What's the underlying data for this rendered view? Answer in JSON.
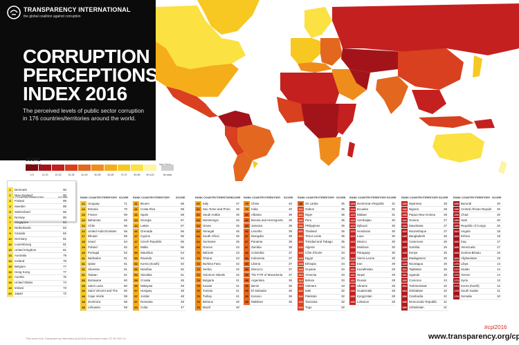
{
  "header": {
    "org_name": "TRANSPARENCY INTERNATIONAL",
    "org_tagline": "the global coalition against corruption",
    "title_lines": [
      "CORRUPTION",
      "PERCEPTIONS",
      "INDEX 2016"
    ],
    "subtitle": "The perceived levels of public sector corruption in 176 countries/territories around the world."
  },
  "legend": {
    "title": "SCORE",
    "low_label": "Highly Corrupt",
    "high_label": "Very Clean",
    "bins": [
      {
        "label": "0-9",
        "color": "#7a0c10"
      },
      {
        "label": "10-19",
        "color": "#a3141a"
      },
      {
        "label": "20-29",
        "color": "#c4201f"
      },
      {
        "label": "30-39",
        "color": "#d8401f"
      },
      {
        "label": "40-49",
        "color": "#e4671f"
      },
      {
        "label": "50-59",
        "color": "#ef8d1c"
      },
      {
        "label": "60-69",
        "color": "#f5ad19"
      },
      {
        "label": "70-79",
        "color": "#f8c822"
      },
      {
        "label": "80-89",
        "color": "#fbe142"
      },
      {
        "label": "90-100",
        "color": "#fdf4a6"
      },
      {
        "label": "No data",
        "color": "#cfcfcf"
      }
    ]
  },
  "table_headers": {
    "rank": "RANK",
    "country": "COUNTRY/TERRITORY",
    "score": "SCORE"
  },
  "columns": [
    {
      "rows": [
        {
          "rank": "1",
          "country": "Denmark",
          "score": "90"
        },
        {
          "rank": "1",
          "country": "New Zealand",
          "score": "90"
        },
        {
          "rank": "3",
          "country": "Finland",
          "score": "89"
        },
        {
          "rank": "4",
          "country": "Sweden",
          "score": "88"
        },
        {
          "rank": "5",
          "country": "Switzerland",
          "score": "86"
        },
        {
          "rank": "6",
          "country": "Norway",
          "score": "85"
        },
        {
          "rank": "7",
          "country": "Singapore",
          "score": "84"
        },
        {
          "rank": "8",
          "country": "Netherlands",
          "score": "83"
        },
        {
          "rank": "9",
          "country": "Canada",
          "score": "82"
        },
        {
          "rank": "10",
          "country": "Germany",
          "score": "81"
        },
        {
          "rank": "10",
          "country": "Luxembourg",
          "score": "81"
        },
        {
          "rank": "10",
          "country": "United Kingdom",
          "score": "81"
        },
        {
          "rank": "13",
          "country": "Australia",
          "score": "79"
        },
        {
          "rank": "14",
          "country": "Iceland",
          "score": "78"
        },
        {
          "rank": "15",
          "country": "Belgium",
          "score": "77"
        },
        {
          "rank": "15",
          "country": "Hong Kong",
          "score": "77"
        },
        {
          "rank": "17",
          "country": "Austria",
          "score": "75"
        },
        {
          "rank": "18",
          "country": "United States",
          "score": "74"
        },
        {
          "rank": "19",
          "country": "Ireland",
          "score": "73"
        },
        {
          "rank": "20",
          "country": "Japan",
          "score": "72"
        }
      ]
    },
    {
      "rows": [
        {
          "rank": "21",
          "country": "Uruguay",
          "score": "71"
        },
        {
          "rank": "22",
          "country": "Estonia",
          "score": "70"
        },
        {
          "rank": "23",
          "country": "France",
          "score": "69"
        },
        {
          "rank": "24",
          "country": "Bahamas",
          "score": "66"
        },
        {
          "rank": "24",
          "country": "Chile",
          "score": "66"
        },
        {
          "rank": "24",
          "country": "United Arab Emirates",
          "score": "66"
        },
        {
          "rank": "27",
          "country": "Bhutan",
          "score": "65"
        },
        {
          "rank": "28",
          "country": "Israel",
          "score": "64"
        },
        {
          "rank": "29",
          "country": "Poland",
          "score": "62"
        },
        {
          "rank": "29",
          "country": "Portugal",
          "score": "62"
        },
        {
          "rank": "31",
          "country": "Barbados",
          "score": "61"
        },
        {
          "rank": "31",
          "country": "Qatar",
          "score": "61"
        },
        {
          "rank": "31",
          "country": "Slovenia",
          "score": "61"
        },
        {
          "rank": "31",
          "country": "Taiwan",
          "score": "61"
        },
        {
          "rank": "35",
          "country": "Botswana",
          "score": "60"
        },
        {
          "rank": "35",
          "country": "Saint Lucia",
          "score": "60"
        },
        {
          "rank": "35",
          "country": "Saint Vincent and The Grenadines",
          "score": "60"
        },
        {
          "rank": "38",
          "country": "Cape Verde",
          "score": "59"
        },
        {
          "rank": "38",
          "country": "Dominica",
          "score": "59"
        },
        {
          "rank": "38",
          "country": "Lithuania",
          "score": "59"
        }
      ]
    },
    {
      "rows": [
        {
          "rank": "41",
          "country": "Brunei",
          "score": "58"
        },
        {
          "rank": "41",
          "country": "Costa Rica",
          "score": "58"
        },
        {
          "rank": "41",
          "country": "Spain",
          "score": "58"
        },
        {
          "rank": "44",
          "country": "Georgia",
          "score": "57"
        },
        {
          "rank": "44",
          "country": "Latvia",
          "score": "57"
        },
        {
          "rank": "46",
          "country": "Grenada",
          "score": "56"
        },
        {
          "rank": "47",
          "country": "Cyprus",
          "score": "55"
        },
        {
          "rank": "47",
          "country": "Czech Republic",
          "score": "55"
        },
        {
          "rank": "47",
          "country": "Malta",
          "score": "55"
        },
        {
          "rank": "50",
          "country": "Mauritius",
          "score": "54"
        },
        {
          "rank": "50",
          "country": "Rwanda",
          "score": "54"
        },
        {
          "rank": "52",
          "country": "Korea (South)",
          "score": "53"
        },
        {
          "rank": "53",
          "country": "Namibia",
          "score": "52"
        },
        {
          "rank": "54",
          "country": "Slovakia",
          "score": "51"
        },
        {
          "rank": "55",
          "country": "Croatia",
          "score": "49"
        },
        {
          "rank": "55",
          "country": "Malaysia",
          "score": "49"
        },
        {
          "rank": "57",
          "country": "Hungary",
          "score": "48"
        },
        {
          "rank": "57",
          "country": "Jordan",
          "score": "48"
        },
        {
          "rank": "57",
          "country": "Romania",
          "score": "48"
        },
        {
          "rank": "60",
          "country": "Cuba",
          "score": "47"
        }
      ]
    },
    {
      "rows": [
        {
          "rank": "60",
          "country": "Italy",
          "score": "47"
        },
        {
          "rank": "62",
          "country": "Sao Tome and Principe",
          "score": "46"
        },
        {
          "rank": "62",
          "country": "Saudi Arabia",
          "score": "46"
        },
        {
          "rank": "64",
          "country": "Montenegro",
          "score": "45"
        },
        {
          "rank": "64",
          "country": "Oman",
          "score": "45"
        },
        {
          "rank": "64",
          "country": "Senegal",
          "score": "45"
        },
        {
          "rank": "64",
          "country": "South Africa",
          "score": "45"
        },
        {
          "rank": "64",
          "country": "Suriname",
          "score": "45"
        },
        {
          "rank": "69",
          "country": "Greece",
          "score": "44"
        },
        {
          "rank": "70",
          "country": "Bahrain",
          "score": "43"
        },
        {
          "rank": "70",
          "country": "Ghana",
          "score": "43"
        },
        {
          "rank": "72",
          "country": "Burkina Faso",
          "score": "42"
        },
        {
          "rank": "72",
          "country": "Serbia",
          "score": "42"
        },
        {
          "rank": "72",
          "country": "Solomon Islands",
          "score": "42"
        },
        {
          "rank": "75",
          "country": "Bulgaria",
          "score": "41"
        },
        {
          "rank": "75",
          "country": "Kuwait",
          "score": "41"
        },
        {
          "rank": "75",
          "country": "Tunisia",
          "score": "41"
        },
        {
          "rank": "75",
          "country": "Turkey",
          "score": "41"
        },
        {
          "rank": "79",
          "country": "Belarus",
          "score": "40"
        },
        {
          "rank": "79",
          "country": "Brazil",
          "score": "40"
        }
      ]
    },
    {
      "rows": [
        {
          "rank": "79",
          "country": "China",
          "score": "40"
        },
        {
          "rank": "79",
          "country": "India",
          "score": "40"
        },
        {
          "rank": "83",
          "country": "Albania",
          "score": "39"
        },
        {
          "rank": "83",
          "country": "Bosnia and Herzegovina",
          "score": "39"
        },
        {
          "rank": "83",
          "country": "Jamaica",
          "score": "39"
        },
        {
          "rank": "83",
          "country": "Lesotho",
          "score": "39"
        },
        {
          "rank": "87",
          "country": "Mongolia",
          "score": "38"
        },
        {
          "rank": "87",
          "country": "Panama",
          "score": "38"
        },
        {
          "rank": "87",
          "country": "Zambia",
          "score": "38"
        },
        {
          "rank": "90",
          "country": "Colombia",
          "score": "37"
        },
        {
          "rank": "90",
          "country": "Indonesia",
          "score": "37"
        },
        {
          "rank": "90",
          "country": "Liberia",
          "score": "37"
        },
        {
          "rank": "90",
          "country": "Morocco",
          "score": "37"
        },
        {
          "rank": "90",
          "country": "The FYR of Macedonia",
          "score": "37"
        },
        {
          "rank": "95",
          "country": "Argentina",
          "score": "36"
        },
        {
          "rank": "95",
          "country": "Benin",
          "score": "36"
        },
        {
          "rank": "95",
          "country": "El Salvador",
          "score": "36"
        },
        {
          "rank": "95",
          "country": "Kosovo",
          "score": "36"
        },
        {
          "rank": "95",
          "country": "Maldives",
          "score": "36"
        }
      ]
    },
    {
      "rows": [
        {
          "rank": "95",
          "country": "Sri Lanka",
          "score": "36"
        },
        {
          "rank": "101",
          "country": "Gabon",
          "score": "35"
        },
        {
          "rank": "101",
          "country": "Niger",
          "score": "35"
        },
        {
          "rank": "101",
          "country": "Peru",
          "score": "35"
        },
        {
          "rank": "101",
          "country": "Philippines",
          "score": "35"
        },
        {
          "rank": "101",
          "country": "Thailand",
          "score": "35"
        },
        {
          "rank": "101",
          "country": "Timor-Leste",
          "score": "35"
        },
        {
          "rank": "101",
          "country": "Trinidad and Tobago",
          "score": "35"
        },
        {
          "rank": "108",
          "country": "Algeria",
          "score": "34"
        },
        {
          "rank": "108",
          "country": "Côte d'Ivoire",
          "score": "34"
        },
        {
          "rank": "108",
          "country": "Egypt",
          "score": "34"
        },
        {
          "rank": "108",
          "country": "Ethiopia",
          "score": "34"
        },
        {
          "rank": "108",
          "country": "Guyana",
          "score": "34"
        },
        {
          "rank": "113",
          "country": "Armenia",
          "score": "33"
        },
        {
          "rank": "113",
          "country": "Bolivia",
          "score": "33"
        },
        {
          "rank": "113",
          "country": "Vietnam",
          "score": "33"
        },
        {
          "rank": "116",
          "country": "Mali",
          "score": "32"
        },
        {
          "rank": "116",
          "country": "Pakistan",
          "score": "32"
        },
        {
          "rank": "116",
          "country": "Tanzania",
          "score": "32"
        },
        {
          "rank": "116",
          "country": "Togo",
          "score": "32"
        }
      ]
    },
    {
      "rows": [
        {
          "rank": "120",
          "country": "Dominican Republic",
          "score": "31"
        },
        {
          "rank": "120",
          "country": "Ecuador",
          "score": "31"
        },
        {
          "rank": "120",
          "country": "Malawi",
          "score": "31"
        },
        {
          "rank": "123",
          "country": "Azerbaijan",
          "score": "30"
        },
        {
          "rank": "123",
          "country": "Djibouti",
          "score": "30"
        },
        {
          "rank": "123",
          "country": "Honduras",
          "score": "30"
        },
        {
          "rank": "123",
          "country": "Laos",
          "score": "30"
        },
        {
          "rank": "123",
          "country": "Mexico",
          "score": "30"
        },
        {
          "rank": "123",
          "country": "Moldova",
          "score": "30"
        },
        {
          "rank": "123",
          "country": "Paraguay",
          "score": "30"
        },
        {
          "rank": "123",
          "country": "Sierra Leone",
          "score": "30"
        },
        {
          "rank": "131",
          "country": "Iran",
          "score": "29"
        },
        {
          "rank": "131",
          "country": "Kazakhstan",
          "score": "29"
        },
        {
          "rank": "131",
          "country": "Nepal",
          "score": "29"
        },
        {
          "rank": "131",
          "country": "Russia",
          "score": "29"
        },
        {
          "rank": "131",
          "country": "Ukraine",
          "score": "29"
        },
        {
          "rank": "136",
          "country": "Guatemala",
          "score": "28"
        },
        {
          "rank": "136",
          "country": "Kyrgyzstan",
          "score": "28"
        },
        {
          "rank": "136",
          "country": "Lebanon",
          "score": "28"
        }
      ]
    },
    {
      "rows": [
        {
          "rank": "136",
          "country": "Myanmar",
          "score": "28"
        },
        {
          "rank": "136",
          "country": "Nigeria",
          "score": "28"
        },
        {
          "rank": "136",
          "country": "Papua New Guinea",
          "score": "28"
        },
        {
          "rank": "142",
          "country": "Guinea",
          "score": "27"
        },
        {
          "rank": "142",
          "country": "Mauritania",
          "score": "27"
        },
        {
          "rank": "142",
          "country": "Mozambique",
          "score": "27"
        },
        {
          "rank": "145",
          "country": "Bangladesh",
          "score": "26"
        },
        {
          "rank": "145",
          "country": "Cameroon",
          "score": "26"
        },
        {
          "rank": "145",
          "country": "Gambia",
          "score": "26"
        },
        {
          "rank": "145",
          "country": "Kenya",
          "score": "26"
        },
        {
          "rank": "145",
          "country": "Madagascar",
          "score": "26"
        },
        {
          "rank": "145",
          "country": "Nicaragua",
          "score": "26"
        },
        {
          "rank": "151",
          "country": "Tajikistan",
          "score": "25"
        },
        {
          "rank": "151",
          "country": "Uganda",
          "score": "25"
        },
        {
          "rank": "153",
          "country": "Comoros",
          "score": "24"
        },
        {
          "rank": "154",
          "country": "Turkmenistan",
          "score": "22"
        },
        {
          "rank": "154",
          "country": "Zimbabwe",
          "score": "22"
        },
        {
          "rank": "156",
          "country": "Cambodia",
          "score": "21"
        },
        {
          "rank": "156",
          "country": "Democratic Republic of Congo",
          "score": "21"
        },
        {
          "rank": "156",
          "country": "Uzbekistan",
          "score": "21"
        }
      ]
    },
    {
      "rows": [
        {
          "rank": "159",
          "country": "Burundi",
          "score": "20"
        },
        {
          "rank": "159",
          "country": "Central African Republic",
          "score": "20"
        },
        {
          "rank": "159",
          "country": "Chad",
          "score": "20"
        },
        {
          "rank": "159",
          "country": "Haiti",
          "score": "20"
        },
        {
          "rank": "159",
          "country": "Republic of Congo",
          "score": "20"
        },
        {
          "rank": "164",
          "country": "Angola",
          "score": "18"
        },
        {
          "rank": "164",
          "country": "Eritrea",
          "score": "18"
        },
        {
          "rank": "166",
          "country": "Iraq",
          "score": "17"
        },
        {
          "rank": "166",
          "country": "Venezuela",
          "score": "17"
        },
        {
          "rank": "168",
          "country": "Guinea-Bissau",
          "score": "16"
        },
        {
          "rank": "169",
          "country": "Afghanistan",
          "score": "15"
        },
        {
          "rank": "170",
          "country": "Libya",
          "score": "14"
        },
        {
          "rank": "170",
          "country": "Sudan",
          "score": "14"
        },
        {
          "rank": "170",
          "country": "Yemen",
          "score": "14"
        },
        {
          "rank": "173",
          "country": "Syria",
          "score": "13"
        },
        {
          "rank": "174",
          "country": "Korea (North)",
          "score": "12"
        },
        {
          "rank": "175",
          "country": "South Sudan",
          "score": "11"
        },
        {
          "rank": "176",
          "country": "Somalia",
          "score": "10"
        }
      ]
    }
  ],
  "footer": {
    "license_note": "This work from Transparency International (2016) is licensed under CC BY-ND 4.0",
    "hashtag": "#cpi2016",
    "url": "www.transparency.org/cpi"
  }
}
